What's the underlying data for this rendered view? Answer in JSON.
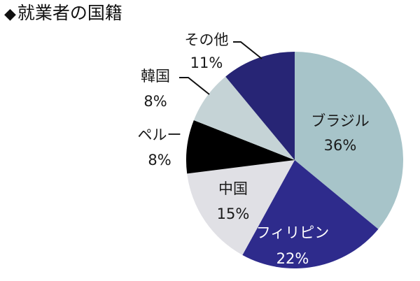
{
  "title": {
    "marker": "◆",
    "text": "就業者の国籍"
  },
  "chart_data": {
    "type": "pie",
    "title": "就業者の国籍",
    "start_angle_deg": 0,
    "direction": "clockwise",
    "unit": "%",
    "categories": [
      "ブラジル",
      "フィリピン",
      "中国",
      "ペルー",
      "韓国",
      "その他"
    ],
    "values": [
      36,
      22,
      15,
      8,
      8,
      11
    ],
    "labels": [
      "36%",
      "22%",
      "15%",
      "8%",
      "8%",
      "11%"
    ],
    "colors": [
      "#A7C4C9",
      "#2E2B8C",
      "#E0E0E5",
      "#000000",
      "#C5D3D6",
      "#272575"
    ],
    "legend": "none (labels on/next to slices)",
    "leader_lines": [
      "韓国",
      "その他"
    ]
  },
  "slices": [
    {
      "name": "ブラジル",
      "pct": "36%"
    },
    {
      "name": "フィリピン",
      "pct": "22%"
    },
    {
      "name": "中国",
      "pct": "15%"
    },
    {
      "name": "ペルー",
      "pct": "8%"
    },
    {
      "name": "韓国",
      "pct": "8%"
    },
    {
      "name": "その他",
      "pct": "11%"
    }
  ]
}
